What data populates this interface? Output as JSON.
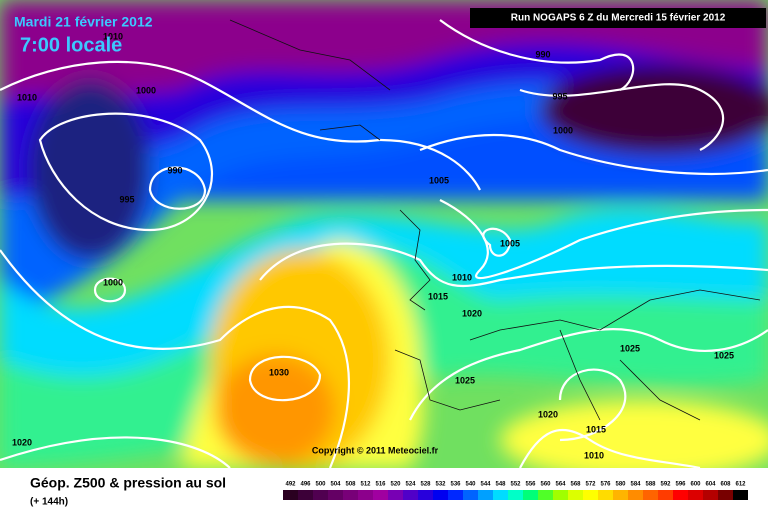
{
  "header": {
    "date": "Mardi 21 février 2012",
    "time": "7:00 locale",
    "run": "Run NOGAPS 6 Z du Mercredi 15 février 2012"
  },
  "copyright": "Copyright © 2011 Meteociel.fr",
  "footer": {
    "title": "Géop. Z500 & pression au sol",
    "lead": "(+ 144h)"
  },
  "isobar_labels": [
    1010,
    1000,
    1010,
    990,
    995,
    1000,
    990,
    995,
    1005,
    1005,
    1010,
    1015,
    1020,
    1000,
    1030,
    1025,
    1025,
    1025,
    1020,
    1015,
    1010,
    1020
  ],
  "legend": [
    {
      "value": 492,
      "color": "#2a0020"
    },
    {
      "value": 496,
      "color": "#3c0038"
    },
    {
      "value": 500,
      "color": "#500050"
    },
    {
      "value": 504,
      "color": "#640064"
    },
    {
      "value": 508,
      "color": "#780078"
    },
    {
      "value": 512,
      "color": "#8c008c"
    },
    {
      "value": 516,
      "color": "#a000a0"
    },
    {
      "value": 520,
      "color": "#7800b4"
    },
    {
      "value": 524,
      "color": "#5000c8"
    },
    {
      "value": 528,
      "color": "#2800dc"
    },
    {
      "value": 532,
      "color": "#0000f0"
    },
    {
      "value": 536,
      "color": "#0028ff"
    },
    {
      "value": 540,
      "color": "#0064ff"
    },
    {
      "value": 544,
      "color": "#00a0ff"
    },
    {
      "value": 548,
      "color": "#00dcff"
    },
    {
      "value": 552,
      "color": "#00ffc8"
    },
    {
      "value": 556,
      "color": "#00ff78"
    },
    {
      "value": 560,
      "color": "#50ff28"
    },
    {
      "value": 564,
      "color": "#a0ff00"
    },
    {
      "value": 568,
      "color": "#dcff00"
    },
    {
      "value": 572,
      "color": "#ffff00"
    },
    {
      "value": 576,
      "color": "#ffdc00"
    },
    {
      "value": 580,
      "color": "#ffb400"
    },
    {
      "value": 584,
      "color": "#ff8c00"
    },
    {
      "value": 588,
      "color": "#ff6400"
    },
    {
      "value": 592,
      "color": "#ff3c00"
    },
    {
      "value": 596,
      "color": "#ff0000"
    },
    {
      "value": 600,
      "color": "#dc0000"
    },
    {
      "value": 604,
      "color": "#b40000"
    },
    {
      "value": 608,
      "color": "#780000"
    },
    {
      "value": 612,
      "color": "#000000"
    }
  ]
}
